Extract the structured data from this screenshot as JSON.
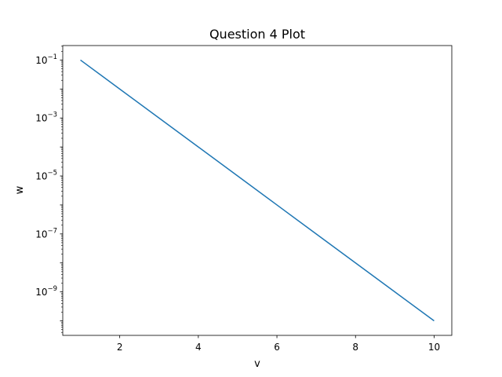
{
  "chart_data": {
    "type": "line",
    "title": "Question 4 Plot",
    "xlabel": "v",
    "ylabel": "w",
    "x": [
      1,
      2,
      3,
      4,
      5,
      6,
      7,
      8,
      9,
      10
    ],
    "series": [
      {
        "values": [
          0.1,
          0.01,
          0.001,
          0.0001,
          1e-05,
          1e-06,
          1e-07,
          1e-08,
          1e-09,
          1e-10
        ],
        "color": "#1f77b4"
      }
    ],
    "xlim": [
      0.55,
      10.45
    ],
    "ylim": [
      3.16e-11,
      0.316
    ],
    "yscale": "log",
    "xticks": [
      2,
      4,
      6,
      8,
      10
    ],
    "yticks": [
      {
        "value": 0.1,
        "base": "10",
        "exp": "−1"
      },
      {
        "value": 0.001,
        "base": "10",
        "exp": "−3"
      },
      {
        "value": 1e-05,
        "base": "10",
        "exp": "−5"
      },
      {
        "value": 1e-07,
        "base": "10",
        "exp": "−7"
      },
      {
        "value": 1e-09,
        "base": "10",
        "exp": "−9"
      }
    ],
    "grid": false,
    "legend": false
  }
}
